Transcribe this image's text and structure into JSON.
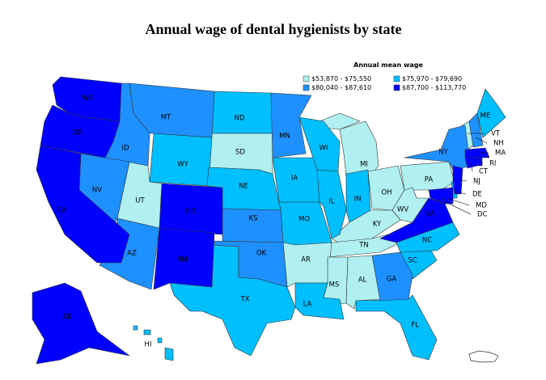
{
  "title": "Annual wage of dental hygienists by state",
  "legend": {
    "title": "Annual mean wage",
    "bins": [
      {
        "label": "$53,870 - $75,550",
        "color": "#b0f0f0",
        "states": [
          "UT",
          "SD",
          "MI",
          "OH",
          "PA",
          "WV",
          "KY",
          "TN",
          "AR",
          "MS",
          "AL",
          "VT"
        ]
      },
      {
        "label": "$75,970 - $79,690",
        "color": "#00bfff",
        "states": [
          "ND",
          "WY",
          "NE",
          "IA",
          "WI",
          "IL",
          "IN",
          "MO",
          "TX",
          "LA",
          "FL",
          "SC",
          "NC",
          "ME",
          "DE",
          "HI"
        ]
      },
      {
        "label": "$80,040 - $87,610",
        "color": "#1e90ff",
        "states": [
          "MT",
          "ID",
          "NV",
          "AZ",
          "KS",
          "OK",
          "MN",
          "GA",
          "NY",
          "NH"
        ]
      },
      {
        "label": "$87,700 - $113,770",
        "color": "#0000ff",
        "states": [
          "WA",
          "OR",
          "CA",
          "CO",
          "NM",
          "AK",
          "MA",
          "RI",
          "CT",
          "NJ",
          "MD",
          "VA",
          "DC"
        ]
      }
    ]
  }
}
